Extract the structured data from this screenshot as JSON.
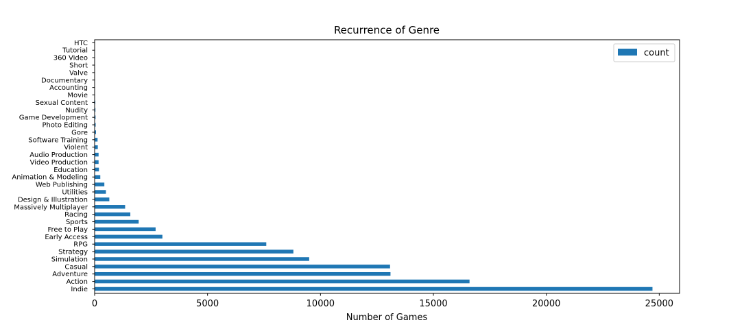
{
  "chart_data": {
    "type": "bar",
    "orientation": "horizontal",
    "title": "Recurrence of Genre",
    "xlabel": "Number of Games",
    "ylabel": "",
    "xlim": [
      0,
      25900
    ],
    "xticks": [
      0,
      5000,
      10000,
      15000,
      20000,
      25000
    ],
    "grid": false,
    "legend": {
      "position": "top-right",
      "entries": [
        "count"
      ]
    },
    "bar_color": "#1f77b4",
    "categories": [
      "Indie",
      "Action",
      "Adventure",
      "Casual",
      "Simulation",
      "Strategy",
      "RPG",
      "Early Access",
      "Free to Play",
      "Sports",
      "Racing",
      "Massively Multiplayer",
      "Design & Illustration",
      "Utilities",
      "Web Publishing",
      "Animation & Modeling",
      "Education",
      "Video Production",
      "Audio Production",
      "Violent",
      "Software Training",
      "Gore",
      "Photo Editing",
      "Game Development",
      "Nudity",
      "Sexual Content",
      "Movie",
      "Accounting",
      "Documentary",
      "Valve",
      "Short",
      "360 Video",
      "Tutorial",
      "HTC"
    ],
    "series": [
      {
        "name": "count",
        "values": [
          24700,
          16600,
          13100,
          13080,
          9500,
          8800,
          7600,
          3000,
          2700,
          1950,
          1580,
          1350,
          650,
          500,
          430,
          250,
          190,
          175,
          175,
          140,
          130,
          60,
          45,
          40,
          35,
          30,
          10,
          8,
          6,
          5,
          4,
          3,
          3,
          2
        ]
      }
    ]
  }
}
